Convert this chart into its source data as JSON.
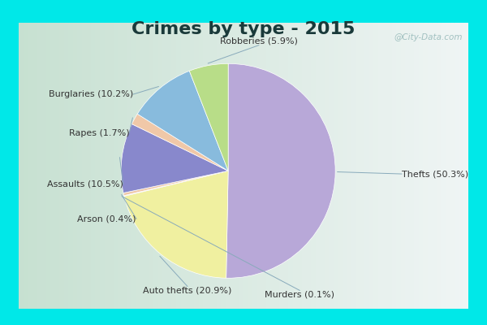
{
  "title": "Crimes by type - 2015",
  "title_fontsize": 16,
  "title_fontweight": "bold",
  "title_color": "#1a3a3a",
  "slices": [
    {
      "label": "Thefts",
      "pct": 50.3,
      "color": "#b8a8d8"
    },
    {
      "label": "Auto thefts",
      "pct": 20.9,
      "color": "#f0f0a0"
    },
    {
      "label": "Murders",
      "pct": 0.1,
      "color": "#c8c0d8"
    },
    {
      "label": "Arson",
      "pct": 0.4,
      "color": "#f0c8a8"
    },
    {
      "label": "Assaults",
      "pct": 10.5,
      "color": "#8888cc"
    },
    {
      "label": "Rapes",
      "pct": 1.7,
      "color": "#f0c8a8"
    },
    {
      "label": "Burglaries",
      "pct": 10.2,
      "color": "#88bbdd"
    },
    {
      "label": "Robberies",
      "pct": 5.9,
      "color": "#b8dd88"
    }
  ],
  "bg_outer": "#00e8e8",
  "bg_inner_left": "#c8ddc8",
  "bg_inner_right": "#e8f0f0",
  "watermark": "@City-Data.com",
  "label_color": "#333333",
  "label_fontsize": 8,
  "line_color": "#88aabb"
}
